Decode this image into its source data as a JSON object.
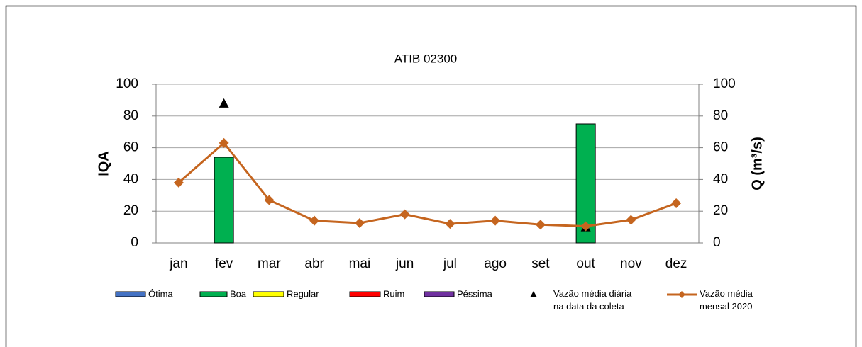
{
  "chart_data": {
    "type": "bar",
    "title": "ATIB 02300",
    "y_label": "IQA",
    "y2_label": "Q (m³/s)",
    "categories": [
      "jan",
      "fev",
      "mar",
      "abr",
      "mai",
      "jun",
      "jul",
      "ago",
      "set",
      "out",
      "nov",
      "dez"
    ],
    "ylim": [
      0,
      100
    ],
    "yticks": [
      0,
      20,
      40,
      60,
      80,
      100
    ],
    "y2lim": [
      0,
      100
    ],
    "y2ticks": [
      0,
      20,
      40,
      60,
      80,
      100
    ],
    "grid": true,
    "series": [
      {
        "name": "Ótima",
        "type": "bar",
        "color": "#4472c4",
        "values": [
          null,
          null,
          null,
          null,
          null,
          null,
          null,
          null,
          null,
          null,
          null,
          null
        ]
      },
      {
        "name": "Boa",
        "type": "bar",
        "color": "#00b050",
        "values": [
          null,
          54,
          null,
          null,
          null,
          null,
          null,
          null,
          null,
          75,
          null,
          null
        ]
      },
      {
        "name": "Regular",
        "type": "bar",
        "color": "#ffff00",
        "values": [
          null,
          null,
          null,
          null,
          null,
          null,
          null,
          null,
          null,
          null,
          null,
          null
        ]
      },
      {
        "name": "Ruim",
        "type": "bar",
        "color": "#ff0000",
        "values": [
          null,
          null,
          null,
          null,
          null,
          null,
          null,
          null,
          null,
          null,
          null,
          null
        ]
      },
      {
        "name": "Péssima",
        "type": "bar",
        "color": "#7030a0",
        "values": [
          null,
          null,
          null,
          null,
          null,
          null,
          null,
          null,
          null,
          null,
          null,
          null
        ]
      },
      {
        "name": "Vazão média diária\nna data da coleta",
        "type": "scatter",
        "axis": "y2",
        "color": "#000000",
        "values": [
          null,
          88,
          null,
          null,
          null,
          null,
          null,
          null,
          null,
          10,
          null,
          null
        ]
      },
      {
        "name": "Vazão média\nmensal 2020",
        "type": "line",
        "axis": "y2",
        "color": "#c5651f",
        "values": [
          38,
          63,
          27,
          14,
          12.5,
          18,
          12,
          14,
          11.5,
          10.5,
          14.5,
          25
        ]
      }
    ]
  }
}
